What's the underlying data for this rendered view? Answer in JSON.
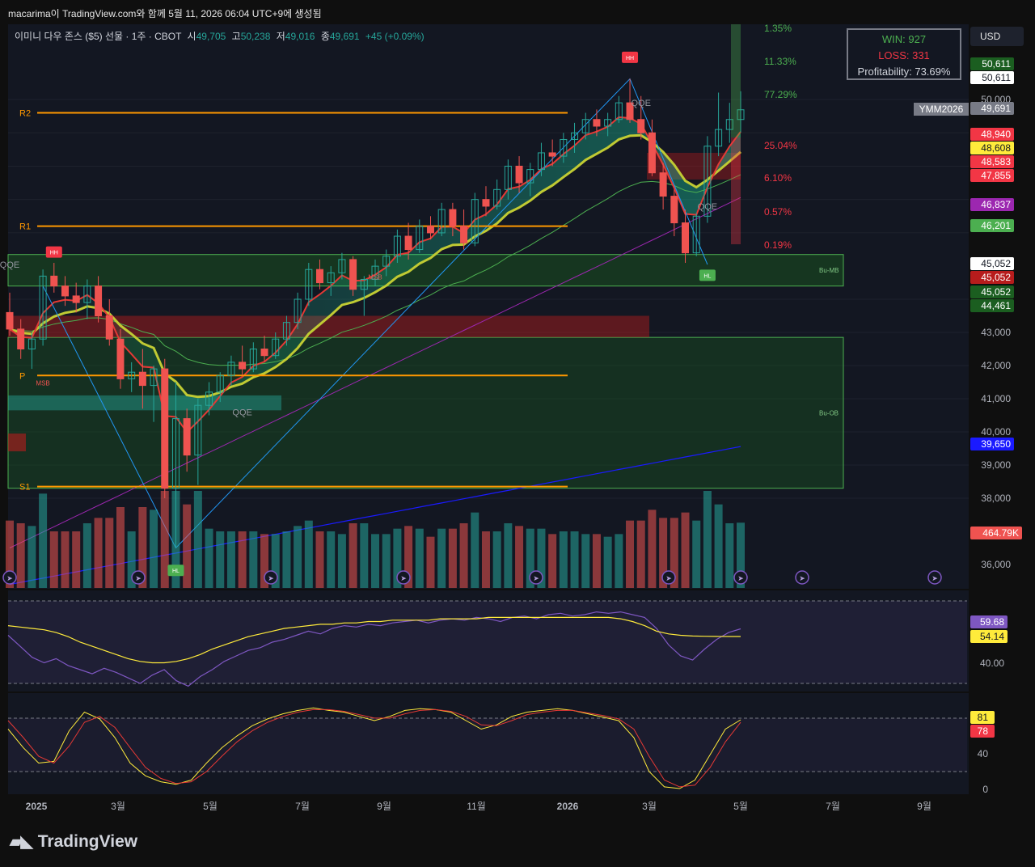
{
  "header": {
    "text": "macarima이 TradingView.com와 함께 5월 11, 2026 06:04 UTC+9에 생성됨"
  },
  "symbol": {
    "name": "이미니 다우 존스 ($5) 선물 · 1주 · CBOT",
    "o_label": "시",
    "o": "49,705",
    "h_label": "고",
    "h": "50,238",
    "l_label": "저",
    "l": "49,016",
    "c_label": "종",
    "c": "49,691",
    "change": "+45 (+0.09%)"
  },
  "stats_box": {
    "win": "WIN: 927",
    "loss": "LOSS: 331",
    "profitability": "Profitability: 73.69%"
  },
  "currency_button": "USD",
  "brand": "TradingView",
  "colors": {
    "up": "#26a69a",
    "down": "#ef5350",
    "background": "#131722",
    "pivot": "#ff9800",
    "bull_zone": "#1b5e20"
  },
  "chart_data": [
    {
      "type": "candlestick",
      "title": "이미니 다우 존스 ($5) 선물 · 1주 · CBOT",
      "x_axis": [
        "2025",
        "3월",
        "5월",
        "7월",
        "9월",
        "11월",
        "2026",
        "3월",
        "5월",
        "7월",
        "9월"
      ],
      "y_ticks": [
        "36,000",
        "38,000",
        "39,000",
        "40,000",
        "41,000",
        "42,000",
        "43,000",
        "50,000"
      ],
      "ylim": [
        35500,
        51500
      ],
      "candles": [
        [
          43600,
          44200,
          42900,
          43100
        ],
        [
          43100,
          43400,
          42200,
          42500
        ],
        [
          42500,
          43000,
          41900,
          42800
        ],
        [
          42800,
          44900,
          42600,
          44700
        ],
        [
          44700,
          45100,
          44200,
          44400
        ],
        [
          44400,
          44700,
          43800,
          44100
        ],
        [
          44100,
          44500,
          43600,
          43900
        ],
        [
          43900,
          44600,
          43400,
          44400
        ],
        [
          44400,
          44700,
          43300,
          43500
        ],
        [
          43500,
          44000,
          42600,
          42800
        ],
        [
          42800,
          43100,
          41300,
          41600
        ],
        [
          41600,
          42100,
          41200,
          41800
        ],
        [
          41800,
          42500,
          40700,
          41400
        ],
        [
          41400,
          42000,
          40300,
          41900
        ],
        [
          41900,
          42200,
          38000,
          38300
        ],
        [
          38300,
          41500,
          36500,
          40400
        ],
        [
          40400,
          40700,
          38800,
          39300
        ],
        [
          39300,
          41000,
          38400,
          40800
        ],
        [
          40800,
          41500,
          40500,
          41200
        ],
        [
          41200,
          41800,
          40900,
          41700
        ],
        [
          41700,
          42300,
          41400,
          42100
        ],
        [
          42100,
          42600,
          41700,
          41900
        ],
        [
          41900,
          42700,
          41800,
          42500
        ],
        [
          42500,
          42900,
          42100,
          42300
        ],
        [
          42300,
          43000,
          42200,
          42800
        ],
        [
          42800,
          43500,
          42600,
          43300
        ],
        [
          43300,
          44200,
          43100,
          44000
        ],
        [
          44000,
          45100,
          43800,
          44900
        ],
        [
          44900,
          45200,
          44300,
          44500
        ],
        [
          44500,
          45000,
          44100,
          44800
        ],
        [
          44800,
          45400,
          44600,
          45200
        ],
        [
          45200,
          45300,
          44100,
          44300
        ],
        [
          44300,
          44700,
          43500,
          44600
        ],
        [
          44600,
          45200,
          44400,
          45000
        ],
        [
          45000,
          45500,
          44700,
          45300
        ],
        [
          45300,
          46100,
          45100,
          45900
        ],
        [
          45900,
          46300,
          45200,
          45500
        ],
        [
          45500,
          46400,
          45400,
          46200
        ],
        [
          46200,
          46500,
          45800,
          46000
        ],
        [
          46000,
          46900,
          45900,
          46700
        ],
        [
          46700,
          46900,
          45900,
          46200
        ],
        [
          46200,
          46700,
          45500,
          45700
        ],
        [
          45700,
          47200,
          45600,
          47000
        ],
        [
          47000,
          47400,
          46500,
          46800
        ],
        [
          46800,
          47600,
          46700,
          47300
        ],
        [
          47300,
          48200,
          47000,
          48000
        ],
        [
          48000,
          48300,
          47200,
          47500
        ],
        [
          47500,
          48100,
          47100,
          47900
        ],
        [
          47900,
          48700,
          47700,
          48400
        ],
        [
          48400,
          48800,
          48000,
          48300
        ],
        [
          48300,
          49000,
          48100,
          48800
        ],
        [
          48800,
          49300,
          48400,
          49000
        ],
        [
          49000,
          49600,
          48800,
          49400
        ],
        [
          49400,
          49700,
          48900,
          49200
        ],
        [
          49200,
          49600,
          48900,
          49400
        ],
        [
          49400,
          50100,
          49300,
          49900
        ],
        [
          49900,
          50600,
          49300,
          49400
        ],
        [
          49400,
          50100,
          48800,
          49000
        ],
        [
          49000,
          49400,
          47700,
          47800
        ],
        [
          47800,
          48100,
          46700,
          47100
        ],
        [
          47100,
          47300,
          45900,
          46300
        ],
        [
          46300,
          46700,
          45100,
          45400
        ],
        [
          45400,
          46600,
          45300,
          46500
        ],
        [
          46500,
          48900,
          46300,
          48600
        ],
        [
          48600,
          50200,
          48300,
          49100
        ],
        [
          49100,
          49900,
          48700,
          49400
        ],
        [
          49400,
          50238,
          49016,
          49691
        ]
      ],
      "volume_label": "464.79K",
      "pivot_levels": [
        {
          "name": "R2",
          "value": 49600
        },
        {
          "name": "R1",
          "value": 46200
        },
        {
          "name": "P",
          "value": 41700
        },
        {
          "name": "S1",
          "value": 38350
        }
      ],
      "zones": [
        {
          "label": "Bu-MB",
          "from": 44400,
          "to": 45350
        },
        {
          "label": "Bu-OB",
          "from": 38300,
          "to": 42850
        }
      ],
      "signal_labels": [
        "HH",
        "HH",
        "HL",
        "HL",
        "QQE",
        "QQE",
        "QQE",
        "QQE",
        "MSB",
        "MSB"
      ],
      "target_percents": [
        "1.35%",
        "11.33%",
        "77.29%",
        "25.04%",
        "6.10%",
        "0.57%",
        "0.19%"
      ],
      "price_labels": [
        {
          "text": "50,611",
          "bg": "#1b5e20",
          "fg": "#ffffff",
          "y": 50611
        },
        {
          "text": "50,611",
          "bg": "#ffffff",
          "fg": "#131722",
          "y": 50611
        },
        {
          "text": "49,691",
          "bg": "#787b86",
          "fg": "#ffffff",
          "y": 49691
        },
        {
          "text": "48,940",
          "bg": "#f23645",
          "fg": "#ffffff",
          "y": 48940
        },
        {
          "text": "48,608",
          "bg": "#ffeb3b",
          "fg": "#131722",
          "y": 48608
        },
        {
          "text": "48,583",
          "bg": "#f23645",
          "fg": "#ffffff",
          "y": 48583
        },
        {
          "text": "47,855",
          "bg": "#f23645",
          "fg": "#ffffff",
          "y": 47855
        },
        {
          "text": "46,837",
          "bg": "#9c27b0",
          "fg": "#ffffff",
          "y": 46837
        },
        {
          "text": "46,201",
          "bg": "#4caf50",
          "fg": "#ffffff",
          "y": 46201
        },
        {
          "text": "45,052",
          "bg": "#ffffff",
          "fg": "#131722",
          "y": 45052
        },
        {
          "text": "45,052",
          "bg": "#b71c1c",
          "fg": "#ffffff",
          "y": 45052
        },
        {
          "text": "45,052",
          "bg": "#1b5e20",
          "fg": "#ffffff",
          "y": 45052
        },
        {
          "text": "44,461",
          "bg": "#1b5e20",
          "fg": "#ffffff",
          "y": 44461
        },
        {
          "text": "39,650",
          "bg": "#1a1aff",
          "fg": "#ffffff",
          "y": 39650
        }
      ],
      "symbol_tag": "YMM2026"
    },
    {
      "type": "line",
      "series": [
        {
          "values": [
            55,
            47,
            39,
            35,
            38,
            33,
            30,
            27,
            31,
            28,
            24,
            20,
            26,
            30,
            22,
            18,
            25,
            30,
            36,
            40,
            44,
            46,
            50,
            52,
            55,
            58,
            56,
            60,
            62,
            61,
            63,
            62,
            64,
            65,
            66,
            64,
            66,
            67,
            66,
            68,
            67,
            65,
            68,
            69,
            67,
            70,
            71,
            69,
            70,
            72,
            71,
            72,
            70,
            68,
            60,
            48,
            40,
            37,
            45,
            52,
            57,
            59.68
          ]
        },
        {
          "values": [
            62,
            61,
            60,
            59,
            57,
            54,
            50,
            47,
            44,
            41,
            38,
            36,
            35,
            35,
            36,
            38,
            41,
            45,
            48,
            51,
            54,
            56,
            58,
            60,
            61,
            62,
            63,
            63,
            64,
            64,
            65,
            65,
            66,
            66,
            66,
            66,
            67,
            67,
            67,
            67,
            68,
            68,
            68,
            68,
            68,
            68,
            68,
            68,
            68,
            68,
            68,
            67,
            65,
            62,
            58,
            56,
            55,
            54.5,
            54.3,
            54.2,
            54.1,
            54.14
          ]
        }
      ],
      "y_ticks": [
        "40.00"
      ],
      "value_labels": [
        "59.68",
        "54.14"
      ]
    },
    {
      "type": "line",
      "series": [
        {
          "values": [
            70,
            48,
            30,
            32,
            68,
            90,
            82,
            60,
            30,
            15,
            8,
            5,
            10,
            30,
            48,
            62,
            74,
            82,
            88,
            92,
            95,
            92,
            90,
            85,
            80,
            85,
            92,
            94,
            93,
            90,
            80,
            70,
            75,
            85,
            90,
            92,
            94,
            92,
            88,
            84,
            80,
            60,
            20,
            2,
            0,
            10,
            40,
            70,
            81
          ]
        },
        {
          "values": [
            80,
            60,
            38,
            30,
            50,
            78,
            85,
            72,
            48,
            25,
            12,
            6,
            8,
            20,
            38,
            55,
            68,
            78,
            85,
            90,
            93,
            93,
            91,
            87,
            83,
            83,
            88,
            92,
            93,
            91,
            85,
            75,
            74,
            80,
            87,
            90,
            92,
            92,
            89,
            86,
            82,
            70,
            38,
            10,
            2,
            4,
            25,
            55,
            78
          ]
        }
      ],
      "y_ticks": [
        "40",
        "0"
      ],
      "value_labels": [
        "81",
        "78"
      ]
    }
  ]
}
